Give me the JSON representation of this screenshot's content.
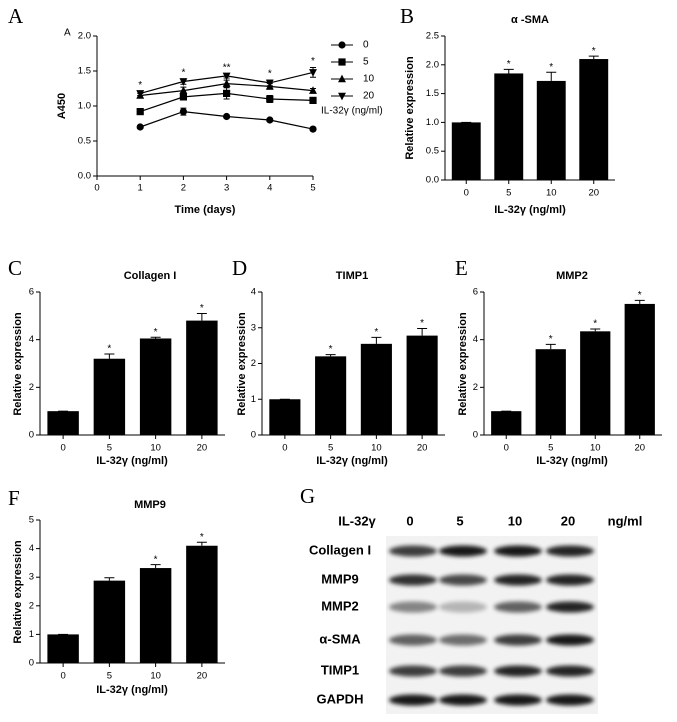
{
  "chart_data": [
    {
      "type": "line",
      "label": "A",
      "inner_label": "A",
      "x_label": "Time (days)",
      "y_label": "A450",
      "x": [
        1,
        2,
        3,
        4,
        5
      ],
      "xlim": [
        0,
        5
      ],
      "xticks": [
        0,
        1,
        2,
        3,
        4,
        5
      ],
      "ylim": [
        0,
        2
      ],
      "yticks": [
        {
          "value": 0,
          "label": "0.0"
        },
        0.5,
        {
          "value": 1,
          "label": "1.0"
        },
        1.5,
        {
          "value": 2,
          "label": "2.0"
        }
      ],
      "legend_title": "IL-32γ (ng/ml)",
      "legend": "right",
      "series": [
        {
          "name": "0",
          "marker": "circle",
          "color": "#000000",
          "values": [
            0.7,
            0.92,
            0.85,
            0.8,
            0.67
          ],
          "errors": [
            0.02,
            0.05,
            0.02,
            0.02,
            0.02
          ]
        },
        {
          "name": "5",
          "marker": "square",
          "color": "#000000",
          "values": [
            0.92,
            1.13,
            1.18,
            1.1,
            1.08
          ],
          "errors": [
            0.03,
            0.04,
            0.08,
            0.05,
            0.04
          ]
        },
        {
          "name": "10",
          "marker": "triangle-up",
          "color": "#000000",
          "values": [
            1.15,
            1.22,
            1.32,
            1.28,
            1.22
          ],
          "errors": [
            0.03,
            0.05,
            0.05,
            0.04,
            0.03
          ]
        },
        {
          "name": "20",
          "marker": "triangle-down",
          "color": "#000000",
          "values": [
            1.18,
            1.35,
            1.43,
            1.33,
            1.48
          ],
          "errors": [
            0.03,
            0.04,
            0.03,
            0.04,
            0.07
          ]
        }
      ],
      "stars": [
        "*",
        "*",
        "**",
        "*",
        "*"
      ]
    },
    {
      "type": "bar",
      "label": "B",
      "title": "α -SMA",
      "x_label": "IL-32γ (ng/ml)",
      "y_label": "Relative expression",
      "color": "#000000",
      "categories": [
        "0",
        "5",
        "10",
        "20"
      ],
      "values": [
        1.0,
        1.85,
        1.72,
        2.1
      ],
      "errors": [
        0,
        0.07,
        0.15,
        0.05
      ],
      "ylim": [
        0,
        2.5
      ],
      "yticks": [
        {
          "value": 0,
          "label": "0.0"
        },
        0.5,
        {
          "value": 1,
          "label": "1.0"
        },
        1.5,
        {
          "value": 2,
          "label": "2.0"
        },
        2.5
      ],
      "stars": [
        null,
        "*",
        "*",
        "*"
      ]
    },
    {
      "type": "bar",
      "label": "C",
      "title": "Collagen I",
      "x_label": "IL-32γ (ng/ml)",
      "y_label": "Relative expression",
      "color": "#000000",
      "categories": [
        "0",
        "5",
        "10",
        "20"
      ],
      "values": [
        1.0,
        3.2,
        4.05,
        4.8
      ],
      "errors": [
        0,
        0.2,
        0.05,
        0.3
      ],
      "ylim": [
        0,
        6
      ],
      "yticks": [
        0,
        2,
        4,
        6
      ],
      "stars": [
        null,
        "*",
        "*",
        "*"
      ]
    },
    {
      "type": "bar",
      "label": "D",
      "title": "TIMP1",
      "x_label": "IL-32γ (ng/ml)",
      "y_label": "Relative expression",
      "color": "#000000",
      "categories": [
        "0",
        "5",
        "10",
        "20"
      ],
      "values": [
        1.0,
        2.2,
        2.55,
        2.78
      ],
      "errors": [
        0,
        0.05,
        0.18,
        0.2
      ],
      "ylim": [
        0,
        4
      ],
      "yticks": [
        0,
        1,
        2,
        3,
        4
      ],
      "stars": [
        null,
        "*",
        "*",
        "*"
      ]
    },
    {
      "type": "bar",
      "label": "E",
      "title": "MMP2",
      "x_label": "IL-32γ (ng/ml)",
      "y_label": "Relative expression",
      "color": "#000000",
      "categories": [
        "0",
        "5",
        "10",
        "20"
      ],
      "values": [
        1.0,
        3.6,
        4.35,
        5.5
      ],
      "errors": [
        0,
        0.2,
        0.1,
        0.15
      ],
      "ylim": [
        0,
        6
      ],
      "yticks": [
        0,
        2,
        4,
        6
      ],
      "stars": [
        null,
        "*",
        "*",
        "*"
      ]
    },
    {
      "type": "bar",
      "label": "F",
      "title": "MMP9",
      "x_label": "IL-32γ (ng/ml)",
      "y_label": "Relative expression",
      "color": "#000000",
      "categories": [
        "0",
        "5",
        "10",
        "20"
      ],
      "values": [
        1.0,
        2.88,
        3.32,
        4.1
      ],
      "errors": [
        0,
        0.1,
        0.12,
        0.12
      ],
      "ylim": [
        0,
        5
      ],
      "yticks": [
        0,
        1,
        2,
        3,
        4,
        5
      ],
      "stars": [
        null,
        null,
        "*",
        "*"
      ]
    }
  ],
  "blot": {
    "label": "G",
    "header": [
      "IL-32γ",
      "0",
      "5",
      "10",
      "20",
      "ng/ml"
    ],
    "rows": [
      "Collagen I",
      "MMP9",
      "MMP2",
      "α-SMA",
      "TIMP1",
      "GAPDH"
    ]
  }
}
